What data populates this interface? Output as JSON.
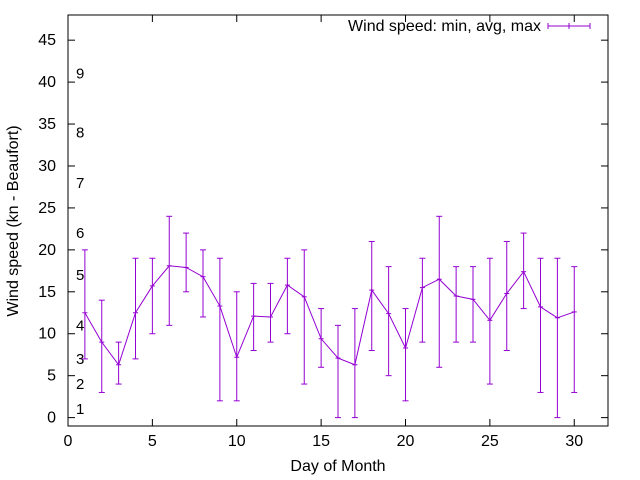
{
  "chart_data": {
    "type": "line",
    "title": "",
    "xlabel": "Day of Month",
    "ylabel": "Wind speed (kn - Beaufort)",
    "xlim": [
      0,
      32
    ],
    "ylim": [
      -1,
      48
    ],
    "x_ticks": [
      0,
      5,
      10,
      15,
      20,
      25,
      30
    ],
    "y_ticks": [
      0,
      5,
      10,
      15,
      20,
      25,
      30,
      35,
      40,
      45
    ],
    "grid": false,
    "legend_position": "top-right",
    "beaufort_labels": [
      {
        "label": "1",
        "y": 1
      },
      {
        "label": "2",
        "y": 4
      },
      {
        "label": "3",
        "y": 7
      },
      {
        "label": "4",
        "y": 11
      },
      {
        "label": "5",
        "y": 17
      },
      {
        "label": "6",
        "y": 22
      },
      {
        "label": "7",
        "y": 28
      },
      {
        "label": "8",
        "y": 34
      },
      {
        "label": "9",
        "y": 41
      }
    ],
    "series": [
      {
        "name": "Wind speed: min, avg, max",
        "color": "#9400d3",
        "x": [
          1,
          2,
          3,
          4,
          5,
          6,
          7,
          8,
          9,
          10,
          11,
          12,
          13,
          14,
          15,
          16,
          17,
          18,
          19,
          20,
          21,
          22,
          23,
          24,
          25,
          26,
          27,
          28,
          29,
          30
        ],
        "avg": [
          12.5,
          9,
          6.3,
          12.5,
          15.7,
          18.1,
          17.9,
          16.8,
          13.3,
          7.2,
          12.1,
          12,
          15.8,
          14.4,
          9.4,
          7.1,
          6.3,
          15.2,
          12.4,
          8.3,
          15.5,
          16.5,
          14.5,
          14.1,
          11.6,
          14.8,
          17.4,
          13.2,
          11.9,
          12.6
        ],
        "min": [
          7,
          3,
          4,
          7,
          10,
          11,
          15,
          12,
          2,
          2,
          8,
          9,
          10,
          4,
          6,
          0,
          0,
          8,
          5,
          2,
          9,
          6,
          9,
          9,
          4,
          8,
          13,
          3,
          0,
          3
        ],
        "max": [
          20,
          14,
          9,
          19,
          19,
          24,
          22,
          20,
          19,
          15,
          16,
          16,
          19,
          20,
          13,
          11,
          13,
          21,
          18,
          13,
          19,
          24,
          18,
          18,
          19,
          21,
          22,
          19,
          19,
          18
        ]
      }
    ]
  }
}
